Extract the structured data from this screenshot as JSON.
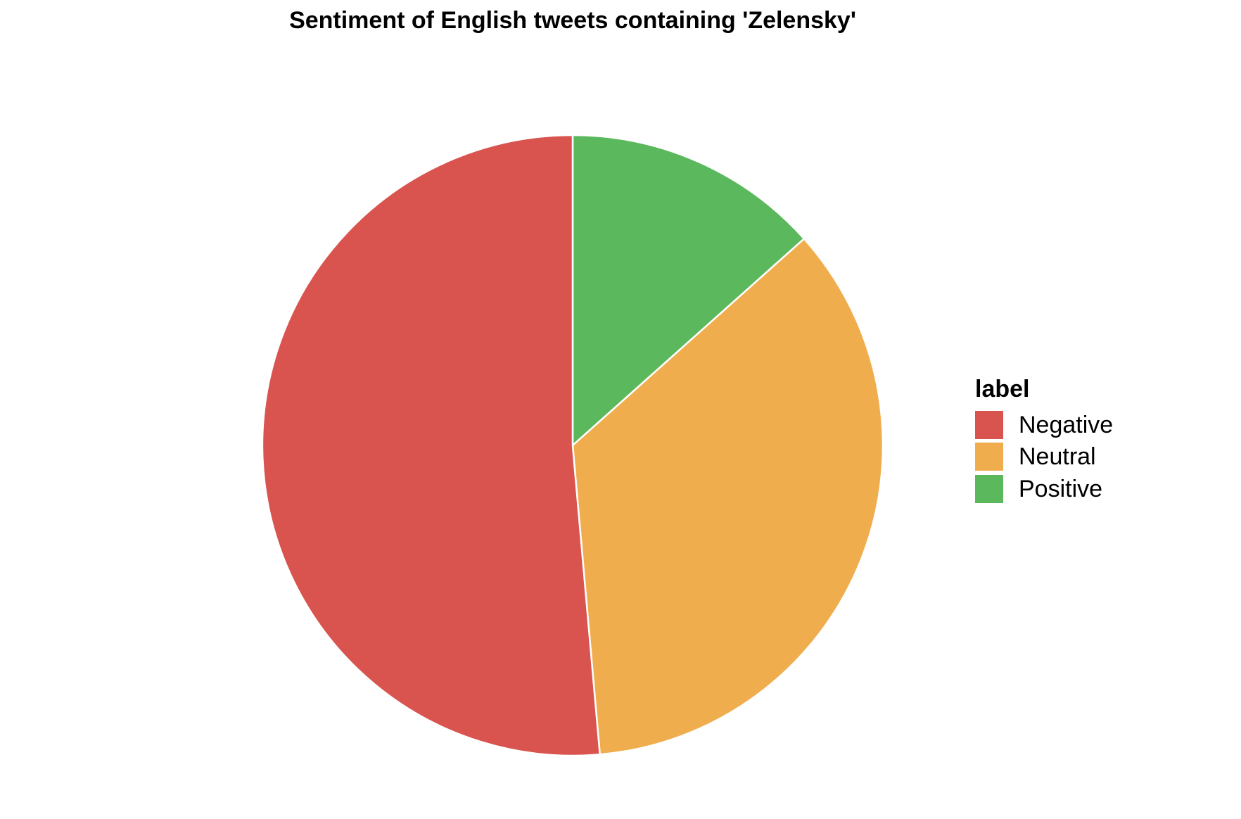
{
  "chart_data": {
    "type": "pie",
    "title": "Sentiment of English tweets containing 'Zelensky'",
    "legend_title": "label",
    "legend_position": "right",
    "slices": [
      {
        "label": "Negative",
        "value": 51.4,
        "color": "#d9534f"
      },
      {
        "label": "Neutral",
        "value": 35.2,
        "color": "#f0ad4e"
      },
      {
        "label": "Positive",
        "value": 13.4,
        "color": "#5cb85c"
      }
    ],
    "start_angle": "12 o'clock",
    "direction": "clockwise",
    "slice_order": [
      "Positive",
      "Neutral",
      "Negative"
    ],
    "slice_border_color": "#ffffff"
  }
}
